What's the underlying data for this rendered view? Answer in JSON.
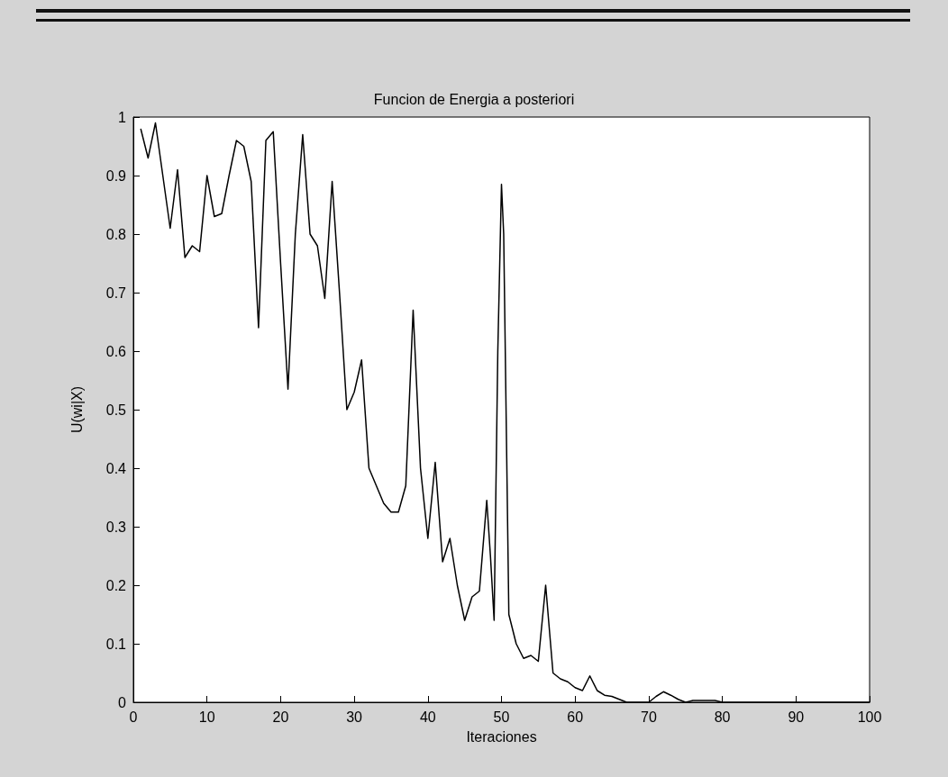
{
  "chart_data": {
    "type": "line",
    "title": "Funcion de Energia a posteriori",
    "xlabel": "Iteraciones",
    "ylabel": "U(wi|X)",
    "x": [
      1,
      2,
      3,
      4,
      5,
      6,
      7,
      8,
      9,
      10,
      11,
      12,
      13,
      14,
      15,
      16,
      17,
      18,
      19,
      20,
      21,
      22,
      23,
      24,
      25,
      26,
      27,
      28,
      29,
      30,
      31,
      32,
      33,
      34,
      35,
      36,
      37,
      38,
      39,
      40,
      41,
      42,
      43,
      44,
      45,
      46,
      47,
      48,
      48.5,
      49,
      49.5,
      50,
      50.3,
      51,
      52,
      53,
      54,
      55,
      56,
      57,
      58,
      59,
      60,
      61,
      62,
      63,
      64,
      65,
      66,
      67,
      68,
      70,
      71,
      72,
      73,
      74,
      75,
      76,
      79,
      80,
      100
    ],
    "series": [
      {
        "color": "#000000",
        "values": [
          0.98,
          0.93,
          0.99,
          0.9,
          0.81,
          0.91,
          0.76,
          0.78,
          0.77,
          0.9,
          0.83,
          0.835,
          0.9,
          0.96,
          0.95,
          0.89,
          0.64,
          0.96,
          0.975,
          0.75,
          0.535,
          0.8,
          0.97,
          0.8,
          0.78,
          0.69,
          0.89,
          0.7,
          0.5,
          0.53,
          0.585,
          0.4,
          0.37,
          0.34,
          0.325,
          0.325,
          0.37,
          0.67,
          0.4,
          0.28,
          0.41,
          0.24,
          0.28,
          0.2,
          0.14,
          0.18,
          0.19,
          0.345,
          0.25,
          0.14,
          0.6,
          0.885,
          0.8,
          0.15,
          0.1,
          0.075,
          0.08,
          0.07,
          0.2,
          0.05,
          0.04,
          0.035,
          0.025,
          0.02,
          0.045,
          0.02,
          0.012,
          0.01,
          0.005,
          0,
          0,
          0,
          0.01,
          0.018,
          0.012,
          0.005,
          0,
          0.003,
          0.003,
          0,
          0
        ]
      }
    ],
    "xlim": [
      0,
      100
    ],
    "xticks": [
      0,
      10,
      20,
      30,
      40,
      50,
      60,
      70,
      80,
      90,
      100
    ],
    "ylim": [
      0,
      1
    ],
    "yticks": [
      0,
      0.1,
      0.2,
      0.3,
      0.4,
      0.5,
      0.6,
      0.7,
      0.8,
      0.9,
      1
    ],
    "grid": false,
    "marker": "none",
    "line_style": "solid"
  }
}
